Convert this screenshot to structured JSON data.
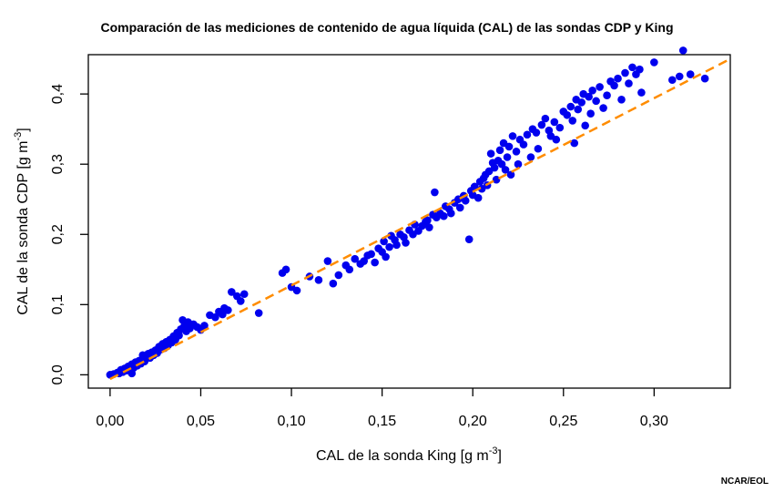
{
  "chart_data": {
    "type": "scatter",
    "title": "Comparación de las mediciones de contenido de agua líquida (CAL) de las sondas CDP y King",
    "xlabel": "CAL de la sonda King [g m",
    "xlabel_sup": "-3",
    "xlabel_end": "]",
    "ylabel": "CAL de la sonda CDP [g m",
    "ylabel_sup": "-3",
    "ylabel_end": "]",
    "xlim": [
      -0.012,
      0.342
    ],
    "ylim": [
      -0.019,
      0.456
    ],
    "xticks": [
      0.0,
      0.05,
      0.1,
      0.15,
      0.2,
      0.25,
      0.3
    ],
    "xtick_labels": [
      "0,00",
      "0,05",
      "0,10",
      "0,15",
      "0,20",
      "0,25",
      "0,30"
    ],
    "yticks": [
      0.0,
      0.1,
      0.2,
      0.3,
      0.4
    ],
    "ytick_labels": [
      "0,0",
      "0,1",
      "0,2",
      "0,3",
      "0,4"
    ],
    "grid": false,
    "legend": "none",
    "point_color": "#0000ee",
    "line_color": "#ff8c00",
    "reference_line": {
      "style": "dashed",
      "x": [
        0.0,
        0.342
      ],
      "y": [
        -0.006,
        0.45
      ]
    },
    "series": [
      {
        "points": [
          [
            0.0,
            0.0
          ],
          [
            0.002,
            0.001
          ],
          [
            0.004,
            0.003
          ],
          [
            0.005,
            0.002
          ],
          [
            0.006,
            0.007
          ],
          [
            0.007,
            0.004
          ],
          [
            0.008,
            0.009
          ],
          [
            0.009,
            0.006
          ],
          [
            0.01,
            0.012
          ],
          [
            0.011,
            0.008
          ],
          [
            0.012,
            0.015
          ],
          [
            0.012,
            0.002
          ],
          [
            0.013,
            0.01
          ],
          [
            0.014,
            0.018
          ],
          [
            0.015,
            0.013
          ],
          [
            0.016,
            0.02
          ],
          [
            0.017,
            0.016
          ],
          [
            0.018,
            0.022
          ],
          [
            0.018,
            0.028
          ],
          [
            0.019,
            0.019
          ],
          [
            0.02,
            0.025
          ],
          [
            0.021,
            0.03
          ],
          [
            0.022,
            0.024
          ],
          [
            0.023,
            0.032
          ],
          [
            0.024,
            0.028
          ],
          [
            0.025,
            0.035
          ],
          [
            0.026,
            0.031
          ],
          [
            0.027,
            0.04
          ],
          [
            0.028,
            0.036
          ],
          [
            0.029,
            0.044
          ],
          [
            0.03,
            0.038
          ],
          [
            0.031,
            0.047
          ],
          [
            0.032,
            0.042
          ],
          [
            0.033,
            0.05
          ],
          [
            0.034,
            0.046
          ],
          [
            0.035,
            0.055
          ],
          [
            0.036,
            0.05
          ],
          [
            0.037,
            0.06
          ],
          [
            0.038,
            0.056
          ],
          [
            0.039,
            0.065
          ],
          [
            0.04,
            0.078
          ],
          [
            0.041,
            0.07
          ],
          [
            0.042,
            0.062
          ],
          [
            0.043,
            0.075
          ],
          [
            0.044,
            0.066
          ],
          [
            0.046,
            0.072
          ],
          [
            0.048,
            0.068
          ],
          [
            0.05,
            0.064
          ],
          [
            0.052,
            0.07
          ],
          [
            0.055,
            0.085
          ],
          [
            0.058,
            0.082
          ],
          [
            0.06,
            0.09
          ],
          [
            0.062,
            0.086
          ],
          [
            0.063,
            0.095
          ],
          [
            0.065,
            0.092
          ],
          [
            0.067,
            0.118
          ],
          [
            0.07,
            0.112
          ],
          [
            0.072,
            0.105
          ],
          [
            0.074,
            0.115
          ],
          [
            0.082,
            0.088
          ],
          [
            0.095,
            0.145
          ],
          [
            0.097,
            0.15
          ],
          [
            0.1,
            0.125
          ],
          [
            0.103,
            0.12
          ],
          [
            0.11,
            0.14
          ],
          [
            0.115,
            0.135
          ],
          [
            0.12,
            0.162
          ],
          [
            0.123,
            0.13
          ],
          [
            0.126,
            0.142
          ],
          [
            0.13,
            0.156
          ],
          [
            0.132,
            0.15
          ],
          [
            0.135,
            0.165
          ],
          [
            0.138,
            0.158
          ],
          [
            0.14,
            0.162
          ],
          [
            0.142,
            0.17
          ],
          [
            0.144,
            0.172
          ],
          [
            0.146,
            0.16
          ],
          [
            0.148,
            0.18
          ],
          [
            0.15,
            0.175
          ],
          [
            0.151,
            0.19
          ],
          [
            0.152,
            0.168
          ],
          [
            0.154,
            0.182
          ],
          [
            0.155,
            0.198
          ],
          [
            0.157,
            0.192
          ],
          [
            0.158,
            0.185
          ],
          [
            0.16,
            0.2
          ],
          [
            0.162,
            0.196
          ],
          [
            0.163,
            0.188
          ],
          [
            0.165,
            0.206
          ],
          [
            0.167,
            0.2
          ],
          [
            0.168,
            0.214
          ],
          [
            0.17,
            0.205
          ],
          [
            0.172,
            0.212
          ],
          [
            0.174,
            0.218
          ],
          [
            0.175,
            0.22
          ],
          [
            0.176,
            0.21
          ],
          [
            0.178,
            0.228
          ],
          [
            0.179,
            0.26
          ],
          [
            0.18,
            0.224
          ],
          [
            0.182,
            0.23
          ],
          [
            0.184,
            0.226
          ],
          [
            0.185,
            0.24
          ],
          [
            0.187,
            0.236
          ],
          [
            0.188,
            0.23
          ],
          [
            0.19,
            0.245
          ],
          [
            0.192,
            0.25
          ],
          [
            0.193,
            0.238
          ],
          [
            0.195,
            0.255
          ],
          [
            0.196,
            0.248
          ],
          [
            0.198,
            0.193
          ],
          [
            0.199,
            0.262
          ],
          [
            0.2,
            0.256
          ],
          [
            0.201,
            0.268
          ],
          [
            0.203,
            0.252
          ],
          [
            0.204,
            0.275
          ],
          [
            0.205,
            0.265
          ],
          [
            0.206,
            0.28
          ],
          [
            0.207,
            0.285
          ],
          [
            0.208,
            0.27
          ],
          [
            0.209,
            0.29
          ],
          [
            0.21,
            0.315
          ],
          [
            0.211,
            0.302
          ],
          [
            0.212,
            0.295
          ],
          [
            0.213,
            0.278
          ],
          [
            0.214,
            0.305
          ],
          [
            0.215,
            0.32
          ],
          [
            0.216,
            0.3
          ],
          [
            0.217,
            0.33
          ],
          [
            0.218,
            0.292
          ],
          [
            0.219,
            0.31
          ],
          [
            0.22,
            0.325
          ],
          [
            0.221,
            0.285
          ],
          [
            0.222,
            0.34
          ],
          [
            0.224,
            0.318
          ],
          [
            0.225,
            0.3
          ],
          [
            0.226,
            0.335
          ],
          [
            0.228,
            0.328
          ],
          [
            0.23,
            0.342
          ],
          [
            0.232,
            0.31
          ],
          [
            0.233,
            0.35
          ],
          [
            0.235,
            0.345
          ],
          [
            0.236,
            0.322
          ],
          [
            0.238,
            0.356
          ],
          [
            0.24,
            0.365
          ],
          [
            0.242,
            0.348
          ],
          [
            0.243,
            0.34
          ],
          [
            0.245,
            0.36
          ],
          [
            0.246,
            0.335
          ],
          [
            0.248,
            0.352
          ],
          [
            0.25,
            0.375
          ],
          [
            0.252,
            0.37
          ],
          [
            0.254,
            0.382
          ],
          [
            0.255,
            0.362
          ],
          [
            0.256,
            0.33
          ],
          [
            0.257,
            0.392
          ],
          [
            0.258,
            0.378
          ],
          [
            0.26,
            0.388
          ],
          [
            0.261,
            0.4
          ],
          [
            0.262,
            0.355
          ],
          [
            0.264,
            0.396
          ],
          [
            0.265,
            0.372
          ],
          [
            0.266,
            0.405
          ],
          [
            0.268,
            0.39
          ],
          [
            0.27,
            0.41
          ],
          [
            0.272,
            0.38
          ],
          [
            0.274,
            0.398
          ],
          [
            0.276,
            0.418
          ],
          [
            0.278,
            0.412
          ],
          [
            0.28,
            0.422
          ],
          [
            0.282,
            0.392
          ],
          [
            0.284,
            0.43
          ],
          [
            0.286,
            0.415
          ],
          [
            0.288,
            0.438
          ],
          [
            0.29,
            0.428
          ],
          [
            0.292,
            0.435
          ],
          [
            0.293,
            0.402
          ],
          [
            0.3,
            0.445
          ],
          [
            0.31,
            0.42
          ],
          [
            0.314,
            0.425
          ],
          [
            0.316,
            0.462
          ],
          [
            0.32,
            0.428
          ],
          [
            0.328,
            0.422
          ]
        ]
      }
    ]
  },
  "credit": "NCAR/EOL"
}
